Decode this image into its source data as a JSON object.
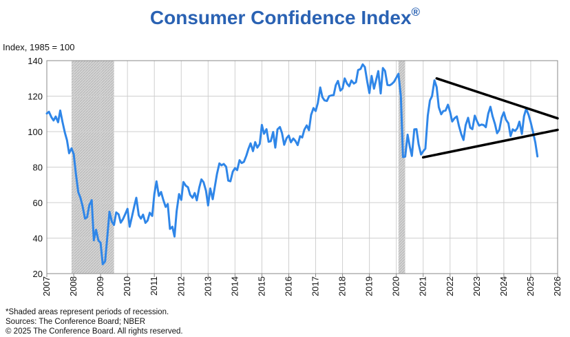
{
  "header": {
    "title": "Consumer Confidence Index",
    "title_mark": "®",
    "unit_label": "Index, 1985 = 100"
  },
  "footnotes": [
    "*Shaded areas represent periods of recession.",
    "Sources: The Conference Board;  NBER",
    "© 2025 The Conference Board. All rights reserved."
  ],
  "chart_data": {
    "type": "line",
    "title": "Consumer Confidence Index®",
    "ylabel": "Index, 1985 = 100",
    "xlabel": "",
    "xlim": [
      2007,
      2026
    ],
    "ylim": [
      20,
      140
    ],
    "yticks": [
      20,
      40,
      60,
      80,
      100,
      120,
      140
    ],
    "xticks": [
      "2007",
      "2008",
      "2009",
      "2010",
      "2011",
      "2012",
      "2013",
      "2014",
      "2015",
      "2016",
      "2017",
      "2018",
      "2019",
      "2020",
      "2021",
      "2022",
      "2023",
      "2024",
      "2025",
      "2026"
    ],
    "grid": true,
    "line_color": "#2f86e8",
    "recession_color": "#c8c8c8",
    "recessions": [
      {
        "start": 2007.92,
        "end": 2009.5
      },
      {
        "start": 2020.08,
        "end": 2020.33
      }
    ],
    "series": [
      {
        "x": [
          2007.0,
          2007.08,
          2007.17,
          2007.25,
          2007.33,
          2007.42,
          2007.5,
          2007.58,
          2007.67,
          2007.75,
          2007.83,
          2007.92,
          2008.0,
          2008.08,
          2008.17,
          2008.25,
          2008.33,
          2008.42,
          2008.5,
          2008.58,
          2008.67,
          2008.75,
          2008.83,
          2008.92,
          2009.0,
          2009.08,
          2009.17,
          2009.25,
          2009.33,
          2009.42,
          2009.5,
          2009.58,
          2009.67,
          2009.75,
          2009.83,
          2009.92,
          2010.0,
          2010.08,
          2010.17,
          2010.25,
          2010.33,
          2010.42,
          2010.5,
          2010.58,
          2010.67,
          2010.75,
          2010.83,
          2010.92,
          2011.0,
          2011.08,
          2011.17,
          2011.25,
          2011.33,
          2011.42,
          2011.5,
          2011.58,
          2011.67,
          2011.75,
          2011.83,
          2011.92,
          2012.0,
          2012.08,
          2012.17,
          2012.25,
          2012.33,
          2012.42,
          2012.5,
          2012.58,
          2012.67,
          2012.75,
          2012.83,
          2012.92,
          2013.0,
          2013.08,
          2013.17,
          2013.25,
          2013.33,
          2013.42,
          2013.5,
          2013.58,
          2013.67,
          2013.75,
          2013.83,
          2013.92,
          2014.0,
          2014.08,
          2014.17,
          2014.25,
          2014.33,
          2014.42,
          2014.5,
          2014.58,
          2014.67,
          2014.75,
          2014.83,
          2014.92,
          2015.0,
          2015.08,
          2015.17,
          2015.25,
          2015.33,
          2015.42,
          2015.5,
          2015.58,
          2015.67,
          2015.75,
          2015.83,
          2015.92,
          2016.0,
          2016.08,
          2016.17,
          2016.25,
          2016.33,
          2016.42,
          2016.5,
          2016.58,
          2016.67,
          2016.75,
          2016.83,
          2016.92,
          2017.0,
          2017.08,
          2017.17,
          2017.25,
          2017.33,
          2017.42,
          2017.5,
          2017.58,
          2017.67,
          2017.75,
          2017.83,
          2017.92,
          2018.0,
          2018.08,
          2018.17,
          2018.25,
          2018.33,
          2018.42,
          2018.5,
          2018.58,
          2018.67,
          2018.75,
          2018.83,
          2018.92,
          2019.0,
          2019.08,
          2019.17,
          2019.25,
          2019.33,
          2019.42,
          2019.5,
          2019.58,
          2019.67,
          2019.75,
          2019.83,
          2019.92,
          2020.0,
          2020.08,
          2020.17,
          2020.25,
          2020.33,
          2020.42,
          2020.5,
          2020.58,
          2020.67,
          2020.75,
          2020.83,
          2020.92,
          2021.0,
          2021.08,
          2021.17,
          2021.25,
          2021.33,
          2021.42,
          2021.5,
          2021.58,
          2021.67,
          2021.75,
          2021.83,
          2021.92,
          2022.0,
          2022.08,
          2022.17,
          2022.25,
          2022.33,
          2022.42,
          2022.5,
          2022.58,
          2022.67,
          2022.75,
          2022.83,
          2022.92,
          2023.0,
          2023.08,
          2023.17,
          2023.25,
          2023.33,
          2023.42,
          2023.5,
          2023.58,
          2023.67,
          2023.75,
          2023.83,
          2023.92,
          2024.0,
          2024.08,
          2024.17,
          2024.25,
          2024.33,
          2024.42,
          2024.5,
          2024.58,
          2024.67,
          2024.75,
          2024.83,
          2024.92,
          2025.0,
          2025.08,
          2025.17,
          2025.25
        ],
        "values": [
          110.2,
          111.2,
          108.2,
          106.3,
          108.5,
          105.3,
          111.9,
          105.6,
          99.5,
          95.2,
          87.8,
          90.6,
          87.3,
          76.4,
          65.9,
          62.8,
          58.1,
          51.0,
          51.9,
          58.5,
          61.4,
          38.8,
          44.7,
          38.6,
          37.4,
          25.3,
          26.9,
          40.8,
          54.8,
          49.3,
          47.4,
          54.5,
          53.4,
          48.7,
          50.6,
          53.6,
          56.5,
          46.4,
          52.3,
          57.7,
          62.7,
          52.9,
          51.0,
          53.2,
          48.6,
          49.9,
          54.3,
          52.5,
          64.8,
          72.0,
          63.8,
          66.0,
          61.7,
          57.6,
          59.2,
          45.2,
          46.4,
          40.9,
          55.2,
          64.8,
          61.5,
          71.6,
          69.5,
          68.7,
          64.4,
          62.7,
          65.4,
          61.3,
          68.4,
          73.1,
          71.5,
          66.7,
          58.4,
          68.0,
          61.9,
          69.0,
          76.2,
          82.1,
          81.0,
          81.8,
          80.2,
          72.4,
          72.0,
          77.5,
          79.4,
          78.3,
          83.9,
          82.3,
          83.0,
          86.4,
          90.3,
          93.4,
          89.0,
          94.1,
          91.0,
          93.1,
          103.8,
          98.8,
          101.4,
          94.3,
          94.6,
          99.8,
          91.0,
          101.3,
          102.6,
          99.1,
          92.6,
          96.3,
          97.8,
          94.0,
          96.1,
          94.7,
          92.4,
          97.4,
          96.7,
          101.1,
          103.5,
          100.8,
          109.4,
          113.3,
          111.6,
          116.1,
          124.9,
          119.4,
          117.6,
          117.3,
          120.0,
          120.4,
          120.6,
          126.2,
          128.6,
          123.1,
          124.3,
          130.0,
          127.0,
          125.6,
          128.8,
          127.1,
          127.9,
          134.7,
          135.3,
          137.9,
          136.4,
          128.1,
          121.7,
          131.4,
          124.2,
          129.2,
          134.1,
          121.5,
          135.8,
          134.2,
          126.3,
          126.1,
          126.8,
          128.2,
          130.4,
          132.6,
          120.0,
          85.7,
          85.9,
          98.3,
          91.7,
          86.3,
          101.3,
          101.4,
          92.9,
          87.1,
          88.9,
          90.4,
          109.0,
          117.5,
          120.0,
          128.9,
          125.1,
          113.8,
          109.8,
          111.6,
          111.9,
          115.2,
          111.1,
          105.7,
          107.6,
          108.6,
          103.2,
          98.4,
          95.3,
          103.6,
          107.8,
          102.2,
          101.4,
          109.0,
          106.0,
          103.4,
          104.0,
          103.7,
          102.5,
          110.1,
          114.0,
          108.7,
          104.3,
          99.1,
          101.0,
          108.0,
          110.9,
          106.7,
          104.7,
          97.5,
          101.3,
          100.4,
          101.9,
          105.6,
          98.7,
          108.7,
          112.8,
          109.5,
          105.3,
          100.1,
          93.9,
          86.0
        ]
      }
    ],
    "trendlines": [
      {
        "x": [
          2021.5,
          2026.0
        ],
        "values": [
          130.0,
          107.5
        ]
      },
      {
        "x": [
          2021.0,
          2026.0
        ],
        "values": [
          85.5,
          101.0
        ]
      }
    ]
  }
}
